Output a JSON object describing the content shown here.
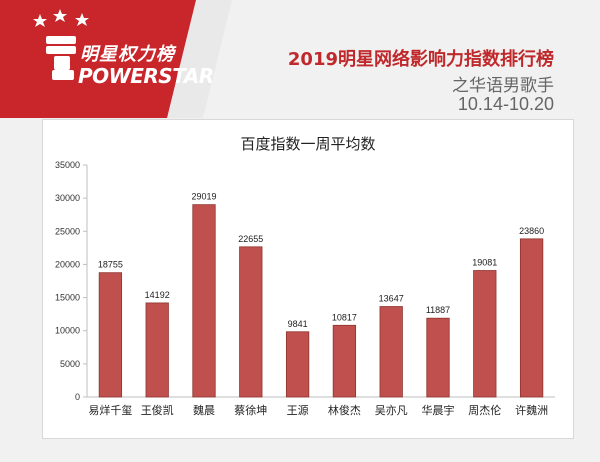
{
  "header": {
    "logo_cn": "明星权力榜",
    "logo_en": "POWERSTAR",
    "title": "2019明星网络影响力指数排行榜",
    "subtitle": "之华语男歌手",
    "date_range": "10.14-10.20"
  },
  "colors": {
    "brand_red": "#c0292c",
    "bar": "#c0504d",
    "bar_edge": "#8e3430"
  },
  "chart_data": {
    "type": "bar",
    "title": "百度指数一周平均数",
    "categories": [
      "易烊千玺",
      "王俊凯",
      "魏晨",
      "蔡徐坤",
      "王源",
      "林俊杰",
      "吴亦凡",
      "华晨宇",
      "周杰伦",
      "许魏洲"
    ],
    "values": [
      18755,
      14192,
      29019,
      22655,
      9841,
      10817,
      13647,
      11887,
      19081,
      23860
    ],
    "ylim": [
      0,
      35000
    ],
    "yticks": [
      0,
      5000,
      10000,
      15000,
      20000,
      25000,
      30000,
      35000
    ],
    "grid": false,
    "legend": "none"
  }
}
